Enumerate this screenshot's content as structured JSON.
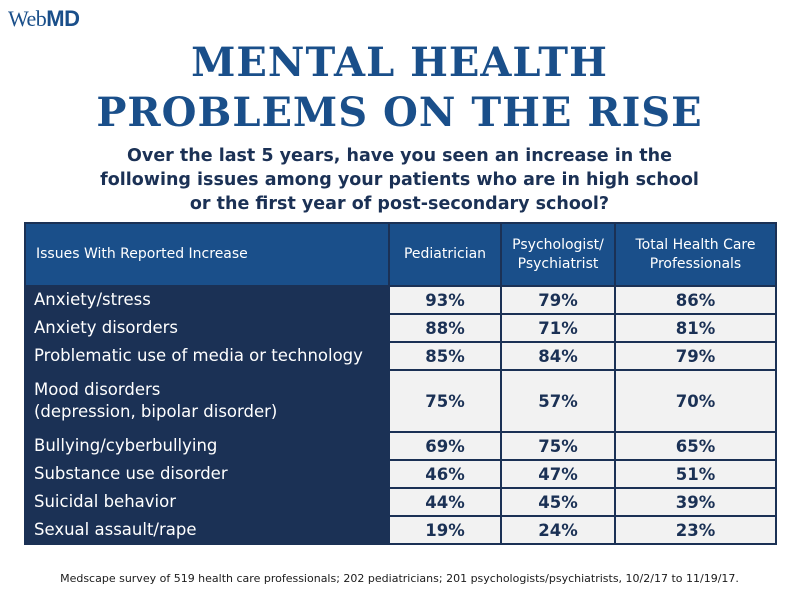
{
  "logo": {
    "part1": "Web",
    "part2": "MD"
  },
  "headline": {
    "line1": "MENTAL HEALTH",
    "line2": "PROBLEMS ON THE RISE"
  },
  "question": {
    "line1": "Over the last 5 years, have you seen an increase in the",
    "line2": "following issues among your patients who are in high school",
    "line3": "or the first year of post-secondary school?"
  },
  "table": {
    "headers": {
      "issue": "Issues With Reported Increase",
      "pediatrician": "Pediatrician",
      "psych_line1": "Psychologist/",
      "psych_line2": "Psychiatrist",
      "total_line1": "Total Health Care",
      "total_line2": "Professionals"
    },
    "rows": [
      {
        "issue": "Anxiety/stress",
        "pediatrician": "93%",
        "psych": "79%",
        "total": "86%"
      },
      {
        "issue": "Anxiety disorders",
        "pediatrician": "88%",
        "psych": "71%",
        "total": "81%"
      },
      {
        "issue": "Problematic use of media or technology",
        "pediatrician": "85%",
        "psych": "84%",
        "total": "79%"
      },
      {
        "issue_line1": "Mood disorders",
        "issue_line2": "(depression, bipolar disorder)",
        "pediatrician": "75%",
        "psych": "57%",
        "total": "70%"
      },
      {
        "issue": "Bullying/cyberbullying",
        "pediatrician": "69%",
        "psych": "75%",
        "total": "65%"
      },
      {
        "issue": "Substance use disorder",
        "pediatrician": "46%",
        "psych": "47%",
        "total": "51%"
      },
      {
        "issue": "Suicidal behavior",
        "pediatrician": "44%",
        "psych": "45%",
        "total": "39%"
      },
      {
        "issue": "Sexual assault/rape",
        "pediatrician": "19%",
        "psych": "24%",
        "total": "23%"
      }
    ]
  },
  "footnote": "Medscape survey of 519 health care professionals; 202 pediatricians; 201 psychologists/psychiatrists, 10/2/17 to 11/19/17.",
  "colors": {
    "brand_blue": "#1a4f8a",
    "navy": "#1b3155",
    "cell_bg": "#f2f2f2"
  }
}
